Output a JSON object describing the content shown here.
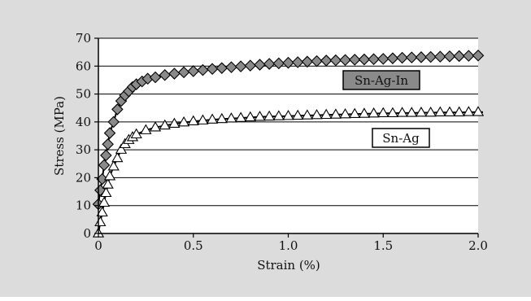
{
  "chart_data": {
    "type": "scatter",
    "title": "",
    "xlabel": "Strain (%)",
    "ylabel": "Stress (MPa)",
    "xlim": [
      0,
      2.0
    ],
    "ylim": [
      0,
      70
    ],
    "x_ticks": [
      "0",
      "0.5",
      "1.0",
      "1.5",
      "2.0"
    ],
    "y_ticks": [
      "0",
      "10",
      "20",
      "30",
      "40",
      "50",
      "60",
      "70"
    ],
    "grid": "horizontal",
    "colors": {
      "frame_bg": "#dcdcdc",
      "plot_bg": "#ffffff",
      "sn_ag_in_marker": "#8a8a8a",
      "sn_ag_marker": "#ffffff",
      "sn_ag_in_label_bg": "#8a8a8a"
    },
    "series": [
      {
        "name": "Sn-Ag-In",
        "marker": "diamond",
        "x": [
          0.0,
          0.01,
          0.02,
          0.03,
          0.04,
          0.05,
          0.06,
          0.08,
          0.1,
          0.12,
          0.14,
          0.16,
          0.18,
          0.2,
          0.23,
          0.26,
          0.3,
          0.35,
          0.4,
          0.45,
          0.5,
          0.55,
          0.6,
          0.65,
          0.7,
          0.75,
          0.8,
          0.85,
          0.9,
          0.95,
          1.0,
          1.05,
          1.1,
          1.15,
          1.2,
          1.25,
          1.3,
          1.35,
          1.4,
          1.45,
          1.5,
          1.55,
          1.6,
          1.65,
          1.7,
          1.75,
          1.8,
          1.85,
          1.9,
          1.95,
          2.0
        ],
        "y": [
          10.5,
          15.5,
          19.5,
          24.5,
          28,
          32,
          36,
          40,
          44.5,
          47.5,
          49.5,
          51,
          52.5,
          53.5,
          54.5,
          55.5,
          56,
          56.8,
          57.3,
          57.8,
          58.2,
          58.6,
          59,
          59.3,
          59.6,
          59.9,
          60.2,
          60.5,
          60.8,
          61,
          61.2,
          61.4,
          61.6,
          61.8,
          62,
          62.1,
          62.2,
          62.3,
          62.4,
          62.5,
          62.6,
          62.8,
          63,
          63.1,
          63.2,
          63.3,
          63.4,
          63.5,
          63.6,
          63.7,
          63.8
        ]
      },
      {
        "name": "Sn-Ag",
        "marker": "triangle",
        "x": [
          0.0,
          0.01,
          0.02,
          0.03,
          0.04,
          0.05,
          0.06,
          0.08,
          0.1,
          0.12,
          0.14,
          0.16,
          0.18,
          0.2,
          0.25,
          0.3,
          0.35,
          0.4,
          0.45,
          0.5,
          0.55,
          0.6,
          0.65,
          0.7,
          0.75,
          0.8,
          0.85,
          0.9,
          0.95,
          1.0,
          1.05,
          1.1,
          1.15,
          1.2,
          1.25,
          1.3,
          1.35,
          1.4,
          1.45,
          1.5,
          1.55,
          1.6,
          1.65,
          1.7,
          1.75,
          1.8,
          1.85,
          1.9,
          1.95,
          2.0
        ],
        "y": [
          0,
          4,
          7.5,
          11,
          14.5,
          17.5,
          20.5,
          24,
          27,
          30,
          32,
          33.5,
          34.5,
          35.5,
          37,
          38,
          38.7,
          39.3,
          39.8,
          40.2,
          40.5,
          40.8,
          41,
          41.2,
          41.4,
          41.6,
          41.8,
          41.9,
          42,
          42.1,
          42.2,
          42.3,
          42.4,
          42.5,
          42.6,
          42.7,
          42.8,
          42.9,
          43,
          43.1,
          43.1,
          43.2,
          43.2,
          43.3,
          43.3,
          43.4,
          43.4,
          43.4,
          43.5,
          43.5
        ]
      }
    ],
    "annotations": [
      {
        "text": "Sn-Ag-In",
        "series": "Sn-Ag-In",
        "style": "filled"
      },
      {
        "text": "Sn-Ag",
        "series": "Sn-Ag",
        "style": "outlined"
      }
    ]
  }
}
